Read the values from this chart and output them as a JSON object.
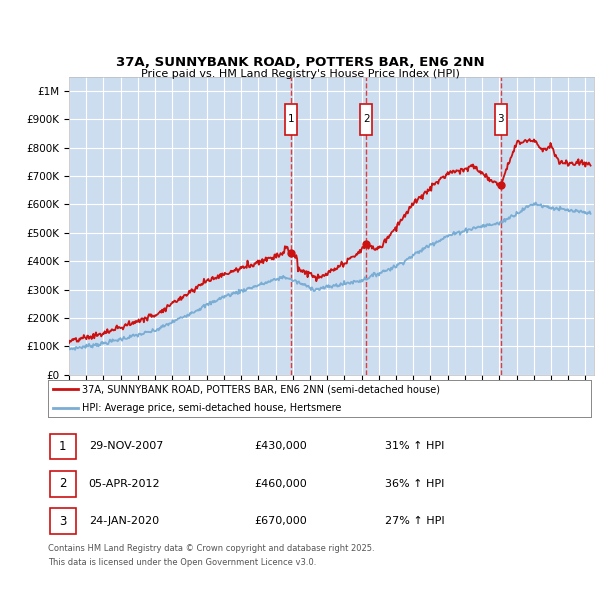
{
  "title": "37A, SUNNYBANK ROAD, POTTERS BAR, EN6 2NN",
  "subtitle": "Price paid vs. HM Land Registry's House Price Index (HPI)",
  "ylabel_ticks": [
    "£0",
    "£100K",
    "£200K",
    "£300K",
    "£400K",
    "£500K",
    "£600K",
    "£700K",
    "£800K",
    "£900K",
    "£1M"
  ],
  "ytick_values": [
    0,
    100000,
    200000,
    300000,
    400000,
    500000,
    600000,
    700000,
    800000,
    900000,
    1000000
  ],
  "ylim": [
    0,
    1050000
  ],
  "xlim_start": 1995.0,
  "xlim_end": 2025.5,
  "background_color": "#cdddf0",
  "grid_color": "#ffffff",
  "hpi_color": "#7aadd4",
  "price_color": "#cc1111",
  "marker_box_color": "#cc1111",
  "vline_color": "#dd2222",
  "sale_dates": [
    2007.91,
    2012.27,
    2020.07
  ],
  "sale_prices": [
    430000,
    460000,
    670000
  ],
  "sale_labels": [
    "1",
    "2",
    "3"
  ],
  "legend_line1": "37A, SUNNYBANK ROAD, POTTERS BAR, EN6 2NN (semi-detached house)",
  "legend_line2": "HPI: Average price, semi-detached house, Hertsmere",
  "table_rows": [
    {
      "num": "1",
      "date": "29-NOV-2007",
      "price": "£430,000",
      "pct": "31% ↑ HPI"
    },
    {
      "num": "2",
      "date": "05-APR-2012",
      "price": "£460,000",
      "pct": "36% ↑ HPI"
    },
    {
      "num": "3",
      "date": "24-JAN-2020",
      "price": "£670,000",
      "pct": "27% ↑ HPI"
    }
  ],
  "footnote1": "Contains HM Land Registry data © Crown copyright and database right 2025.",
  "footnote2": "This data is licensed under the Open Government Licence v3.0."
}
